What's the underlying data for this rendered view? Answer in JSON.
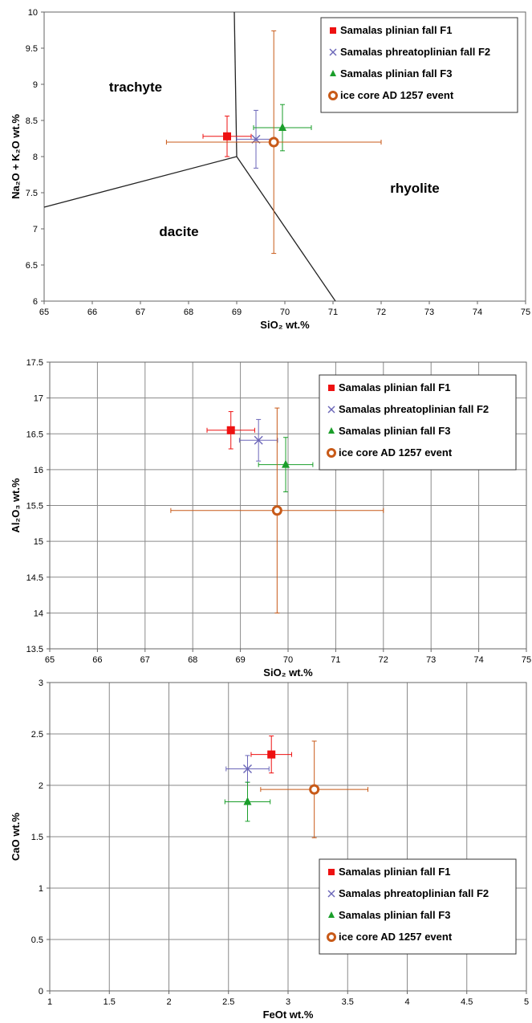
{
  "chart_data": [
    {
      "type": "scatter",
      "xlabel": "SiO₂ wt.%",
      "ylabel": "Na₂O + K₂O wt.%",
      "xlim": [
        65,
        75
      ],
      "ylim": [
        6,
        10
      ],
      "xticks": [
        "65",
        "66",
        "67",
        "68",
        "69",
        "70",
        "71",
        "72",
        "73",
        "74",
        "75"
      ],
      "yticks": [
        "6",
        "6.5",
        "7",
        "7.5",
        "8",
        "8.5",
        "9",
        "9.5",
        "10"
      ],
      "grid": false,
      "legend_position": "top-right",
      "field_labels": [
        {
          "text": "trachyte",
          "x": 66.9,
          "y": 8.9
        },
        {
          "text": "dacite",
          "x": 67.8,
          "y": 6.9
        },
        {
          "text": "rhyolite",
          "x": 72.7,
          "y": 7.5
        }
      ],
      "boundaries": [
        [
          [
            65,
            7.3
          ],
          [
            69,
            8.0
          ]
        ],
        [
          [
            68.95,
            10
          ],
          [
            69,
            8.0
          ]
        ],
        [
          [
            69,
            8.0
          ],
          [
            71.05,
            6
          ]
        ]
      ],
      "series": [
        {
          "name": "Samalas plinian fall F1",
          "marker": "square",
          "color": "#ee1111",
          "x": 68.8,
          "y": 8.28,
          "xerr": 0.5,
          "yerr": 0.28
        },
        {
          "name": "Samalas phreatoplinian fall F2",
          "marker": "cross",
          "color": "#6b66b8",
          "x": 69.4,
          "y": 8.24,
          "xerr": 0.4,
          "yerr": 0.4
        },
        {
          "name": "Samalas plinian fall F3",
          "marker": "triangle",
          "color": "#1a9e2a",
          "x": 69.95,
          "y": 8.4,
          "xerr": 0.6,
          "yerr": 0.32
        },
        {
          "name": "ice core AD 1257 event",
          "marker": "circle",
          "color": "#c85a18",
          "x": 69.77,
          "y": 8.2,
          "xerr": 2.23,
          "yerr": 1.54
        }
      ]
    },
    {
      "type": "scatter",
      "xlabel": "SiO₂ wt.%",
      "ylabel": "Al₂O₃ wt.%",
      "xlim": [
        65,
        75
      ],
      "ylim": [
        13.5,
        17.5
      ],
      "xticks": [
        "65",
        "66",
        "67",
        "68",
        "69",
        "70",
        "71",
        "72",
        "73",
        "74",
        "75"
      ],
      "yticks": [
        "13.5",
        "14",
        "14.5",
        "15",
        "15.5",
        "16",
        "16.5",
        "17",
        "17.5"
      ],
      "grid": true,
      "legend_position": "top-right",
      "series": [
        {
          "name": "Samalas plinian fall F1",
          "marker": "square",
          "color": "#ee1111",
          "x": 68.8,
          "y": 16.55,
          "xerr": 0.5,
          "yerr": 0.26
        },
        {
          "name": "Samalas phreatoplinian fall F2",
          "marker": "cross",
          "color": "#6b66b8",
          "x": 69.38,
          "y": 16.41,
          "xerr": 0.4,
          "yerr": 0.29
        },
        {
          "name": "Samalas plinian fall F3",
          "marker": "triangle",
          "color": "#1a9e2a",
          "x": 69.95,
          "y": 16.07,
          "xerr": 0.57,
          "yerr": 0.38
        },
        {
          "name": "ice core AD 1257 event",
          "marker": "circle",
          "color": "#c85a18",
          "x": 69.77,
          "y": 15.43,
          "xerr": 2.23,
          "yerr": 1.43
        }
      ]
    },
    {
      "type": "scatter",
      "xlabel": "FeOt wt.%",
      "ylabel": "CaO wt.%",
      "xlim": [
        1,
        5
      ],
      "ylim": [
        0,
        3
      ],
      "xticks": [
        "1",
        "1.5",
        "2",
        "2.5",
        "3",
        "3.5",
        "4",
        "4.5",
        "5"
      ],
      "yticks": [
        "0",
        "0.5",
        "1",
        "1.5",
        "2",
        "2.5",
        "3"
      ],
      "grid": true,
      "legend_position": "bottom-right",
      "series": [
        {
          "name": "Samalas plinian fall F1",
          "marker": "square",
          "color": "#ee1111",
          "x": 2.86,
          "y": 2.3,
          "xerr": 0.17,
          "yerr": 0.18
        },
        {
          "name": "Samalas phreatoplinian fall F2",
          "marker": "cross",
          "color": "#6b66b8",
          "x": 2.66,
          "y": 2.16,
          "xerr": 0.18,
          "yerr": 0.13
        },
        {
          "name": "Samalas plinian fall F3",
          "marker": "triangle",
          "color": "#1a9e2a",
          "x": 2.66,
          "y": 1.84,
          "xerr": 0.19,
          "yerr": 0.19
        },
        {
          "name": "ice core AD 1257 event",
          "marker": "circle",
          "color": "#c85a18",
          "x": 3.22,
          "y": 1.96,
          "xerr": 0.45,
          "yerr": 0.47
        }
      ]
    }
  ]
}
